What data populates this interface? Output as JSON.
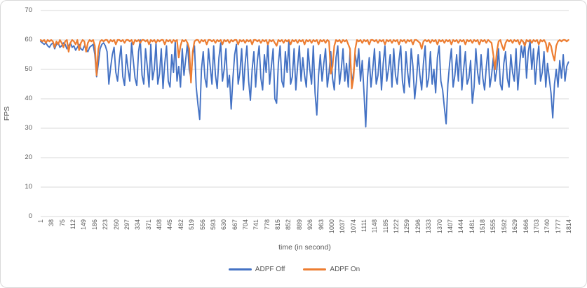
{
  "chart": {
    "y_axis_title": "FPS",
    "x_axis_title": "time (in second)",
    "accent_blue": "#4472C4",
    "accent_orange": "#ED7D31",
    "gridline_color": "#D9D9D9",
    "text_color": "#595959"
  },
  "chart_data": {
    "type": "line",
    "title": "",
    "xlabel": "time (in second)",
    "ylabel": "FPS",
    "ylim": [
      0,
      70
    ],
    "xlim": [
      1,
      1814
    ],
    "yticks": [
      0,
      10,
      20,
      30,
      40,
      50,
      60,
      70
    ],
    "x_tick_labels": [
      1,
      38,
      75,
      112,
      149,
      186,
      223,
      260,
      297,
      334,
      371,
      408,
      445,
      482,
      519,
      556,
      593,
      630,
      667,
      704,
      741,
      778,
      815,
      852,
      889,
      926,
      963,
      1000,
      1037,
      1074,
      1111,
      1148,
      1185,
      1222,
      1259,
      1296,
      1333,
      1370,
      1407,
      1444,
      1481,
      1518,
      1555,
      1592,
      1629,
      1666,
      1703,
      1740,
      1777,
      1814
    ],
    "grid": "horizontal",
    "legend_position": "bottom",
    "x_sampling": {
      "start": 1,
      "step": 6,
      "count": 303,
      "note": "FPS values estimated from pixels; both series sampled every 6 seconds"
    },
    "series": [
      {
        "name": "ADPF Off",
        "color": "#4472C4",
        "values": [
          59.5,
          59,
          58.5,
          59,
          58,
          57.5,
          58.5,
          59,
          57,
          58.5,
          59,
          57.5,
          58,
          59,
          58.5,
          57,
          58,
          59,
          57.5,
          58,
          56.5,
          57.5,
          58.5,
          57,
          56.5,
          58,
          57,
          56,
          57.5,
          58,
          58.5,
          55,
          47.5,
          52,
          57,
          58.5,
          59,
          58,
          56,
          45,
          50.5,
          55,
          57.5,
          49,
          46,
          53,
          58,
          47.5,
          44.5,
          55,
          50,
          46,
          59,
          53,
          47,
          44.5,
          56,
          60,
          48,
          45,
          57,
          51,
          44,
          58.5,
          46.5,
          50,
          59,
          45,
          48.5,
          57,
          43.5,
          52,
          58,
          46,
          44,
          55,
          49,
          59.5,
          46,
          51,
          44,
          57,
          48,
          53.5,
          59,
          50,
          47,
          55,
          58,
          44,
          38,
          33,
          50,
          56,
          47,
          44,
          57,
          51,
          45,
          58,
          48,
          43.5,
          54,
          59,
          46,
          50,
          57,
          44,
          48,
          36.5,
          47,
          55,
          58.5,
          45,
          49,
          57,
          43,
          52,
          58,
          46,
          39.5,
          50,
          56,
          44,
          53,
          58,
          47,
          43,
          55,
          49,
          59,
          45,
          51,
          57,
          40,
          38.5,
          52,
          58,
          46,
          44,
          56,
          49,
          59.5,
          45,
          47.5,
          57,
          43,
          51,
          58,
          46,
          54,
          48,
          44,
          57,
          50,
          45,
          58,
          42,
          34.5,
          48,
          55,
          46,
          52,
          57,
          44,
          49,
          56,
          47,
          43,
          54,
          58,
          45,
          50,
          57,
          46,
          52,
          44,
          56,
          45,
          49,
          55,
          51,
          57,
          46,
          53,
          42,
          30.5,
          47,
          54,
          44,
          50,
          57,
          45,
          48,
          56,
          43,
          52,
          58,
          46,
          50,
          55,
          44,
          57,
          48,
          45,
          53,
          58,
          46,
          42,
          56,
          49,
          44,
          57,
          51,
          40,
          46,
          55,
          48,
          43,
          52,
          58,
          44,
          47,
          56,
          45,
          50,
          42,
          54,
          58,
          46,
          43,
          37,
          31.5,
          45,
          52,
          57,
          44,
          48,
          55,
          46,
          58,
          43,
          50,
          56,
          45,
          47,
          53,
          38.5,
          44,
          57,
          49,
          45,
          55,
          47,
          43,
          51,
          57,
          44,
          48,
          54,
          46,
          50,
          57,
          45,
          43,
          52,
          56,
          47,
          44,
          55,
          49,
          46,
          57,
          43,
          51,
          58,
          54,
          59,
          47,
          56,
          59.5,
          50,
          57,
          45,
          53,
          58,
          46,
          49,
          56,
          44,
          52,
          47,
          42,
          33.5,
          45,
          50,
          44,
          53,
          47,
          55,
          46,
          51,
          52.5
        ]
      },
      {
        "name": "ADPF On",
        "color": "#ED7D31",
        "values": [
          60,
          59.5,
          60,
          59,
          60,
          59.5,
          60,
          59.5,
          57.5,
          59.5,
          58.5,
          60,
          59,
          57.5,
          59.5,
          60,
          56,
          59,
          60,
          59.5,
          58.5,
          60,
          56.5,
          59,
          60,
          59.5,
          56,
          59,
          60,
          59.5,
          60,
          58,
          48,
          57,
          59.5,
          60,
          59.5,
          60,
          60,
          59,
          60,
          59.5,
          60,
          58.5,
          60,
          60,
          59.5,
          60,
          59,
          60,
          60,
          59.5,
          60,
          58.5,
          60,
          59.5,
          60,
          59,
          60,
          60,
          59.5,
          60,
          58.5,
          60,
          59.5,
          60,
          59,
          60,
          59.5,
          60,
          60,
          58.5,
          60,
          59.5,
          60,
          59,
          60,
          59.5,
          60,
          54,
          58,
          60,
          59.5,
          60,
          59,
          57,
          45.5,
          56,
          59.5,
          60,
          60,
          59,
          60,
          59.5,
          60,
          58.5,
          60,
          60,
          59.5,
          60,
          59,
          60,
          59.5,
          60,
          58.5,
          60,
          59.5,
          60,
          59,
          60,
          59.5,
          60,
          60,
          58.5,
          60,
          59.5,
          60,
          59,
          60,
          59.5,
          60,
          58.5,
          60,
          60,
          59.5,
          60,
          59,
          60,
          59.5,
          60,
          58.5,
          60,
          59.5,
          60,
          59,
          58,
          60,
          59.5,
          60,
          59,
          60,
          59.5,
          60,
          58.5,
          60,
          59.5,
          60,
          59,
          60,
          59.5,
          60,
          58.5,
          60,
          59.5,
          60,
          59,
          60,
          59.5,
          60,
          58.5,
          60,
          59.5,
          60,
          59,
          60,
          59.5,
          48.5,
          51,
          58,
          60,
          59.5,
          60,
          59,
          60,
          59.5,
          60,
          58.5,
          57,
          43.5,
          47,
          57,
          60,
          59.5,
          60,
          59,
          60,
          59.5,
          60,
          58.5,
          60,
          60,
          59.5,
          60,
          59,
          60,
          59.5,
          60,
          58.5,
          60,
          59.5,
          60,
          59,
          60,
          59.5,
          60,
          58.5,
          60,
          59.5,
          60,
          59,
          60,
          59.5,
          60,
          58.5,
          60,
          60,
          59.5,
          59,
          57,
          59.5,
          60,
          59.5,
          60,
          59,
          60,
          59.5,
          60,
          58.5,
          60,
          59.5,
          60,
          59,
          60,
          59.5,
          60,
          58.5,
          60,
          59.5,
          60,
          59,
          60,
          59.5,
          60,
          58.5,
          60,
          59.5,
          60,
          59,
          60,
          59.5,
          60,
          58.5,
          60,
          59.5,
          60,
          59,
          60,
          59.5,
          59,
          55,
          50,
          56,
          59.5,
          60,
          58,
          56.5,
          59,
          60,
          59.5,
          60,
          59,
          60,
          59.5,
          60,
          58.5,
          60,
          59.5,
          58,
          60,
          59.5,
          60,
          59,
          60,
          59.5,
          60,
          58.5,
          60,
          59.5,
          60,
          59,
          56,
          59,
          58,
          55,
          53,
          58,
          59.5,
          60,
          59.5,
          60,
          60,
          59.5,
          60
        ]
      }
    ]
  }
}
